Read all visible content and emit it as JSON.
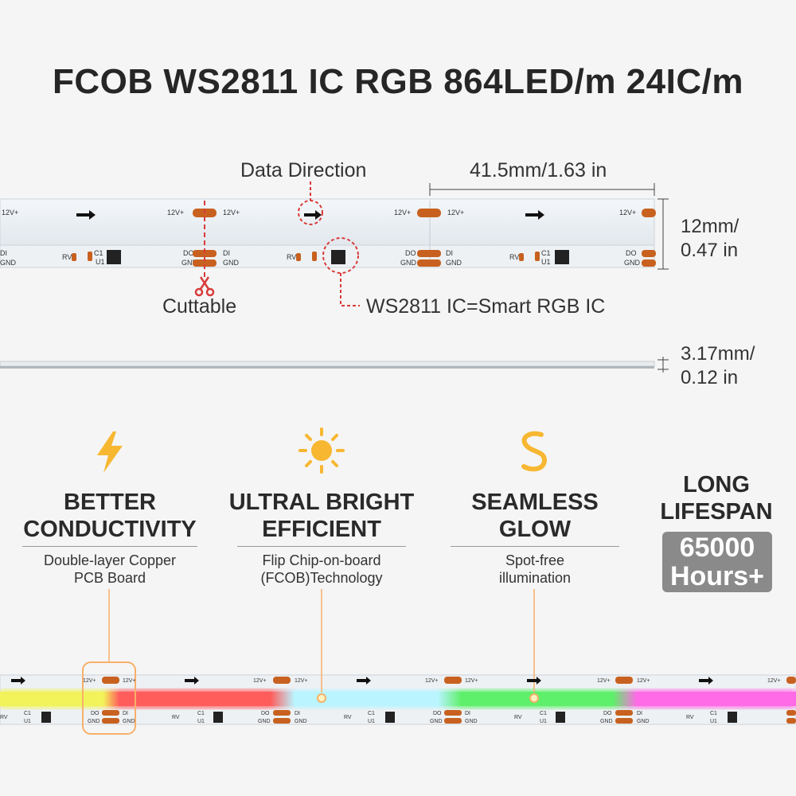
{
  "title": "FCOB WS2811 IC RGB 864LED/m 24IC/m",
  "labels": {
    "data_direction": "Data Direction",
    "cut_length": "41.5mm/1.63 in",
    "cuttable": "Cuttable",
    "ic_note": "WS2811 IC=Smart RGB IC",
    "width_line1": "12mm/",
    "width_line2": "0.47 in",
    "thickness_line1": "3.17mm/",
    "thickness_line2": "0.12 in"
  },
  "strip_marks": {
    "v12": "12V+",
    "do": "DO",
    "di": "DI",
    "gnd": "GND",
    "rv": "RV",
    "c1": "C1",
    "u1": "U1",
    "pad_color": "#c8611f"
  },
  "features": [
    {
      "icon": "lightning-icon",
      "title_line1": "BETTER",
      "title_line2": "CONDUCTIVITY",
      "sub_line1": "Double-layer Copper",
      "sub_line2": "PCB Board"
    },
    {
      "icon": "sun-icon",
      "title_line1": "ULTRAL BRIGHT",
      "title_line2": "EFFICIENT",
      "sub_line1": "Flip Chip-on-board",
      "sub_line2": "(FCOB)Technology"
    },
    {
      "icon": "wave-icon",
      "title_line1": "SEAMLESS",
      "title_line2": "GLOW",
      "sub_line1": "Spot-free",
      "sub_line2": "illumination"
    }
  ],
  "lifespan": {
    "line1": "LONG",
    "line2": "LIFESPAN",
    "badge_line1": "65000",
    "badge_line2": "Hours+"
  },
  "colors": {
    "accent": "#f7b731",
    "cut_red": "#d93a3a",
    "glow_segments": [
      "#f2f25a",
      "#ff5c5c",
      "#b9f4ff",
      "#5ef06a",
      "#ff6ae6"
    ]
  }
}
